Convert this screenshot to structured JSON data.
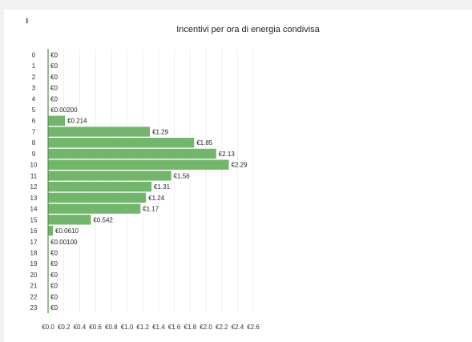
{
  "info_icon": "i",
  "chart_data": {
    "type": "bar",
    "orientation": "horizontal",
    "title": "Incentivi per ora di energia condivisa",
    "xlabel": "",
    "ylabel": "",
    "categories": [
      "0",
      "1",
      "2",
      "3",
      "4",
      "5",
      "6",
      "7",
      "8",
      "9",
      "10",
      "11",
      "12",
      "13",
      "14",
      "15",
      "16",
      "17",
      "18",
      "19",
      "20",
      "21",
      "22",
      "23"
    ],
    "values": [
      0,
      0,
      0,
      0,
      0,
      0.002,
      0.214,
      1.29,
      1.85,
      2.13,
      2.29,
      1.56,
      1.31,
      1.24,
      1.17,
      0.542,
      0.061,
      0.001,
      0,
      0,
      0,
      0,
      0,
      0
    ],
    "data_labels": [
      "€0",
      "€0",
      "€0",
      "€0",
      "€0",
      "€0.00200",
      "€0.214",
      "€1.29",
      "€1.85",
      "€2.13",
      "€2.29",
      "€1.56",
      "€1.31",
      "€1.24",
      "€1.17",
      "€0.542",
      "€0.0610",
      "€0.00100",
      "€0",
      "€0",
      "€0",
      "€0",
      "€0",
      "€0"
    ],
    "x_ticks": [
      0,
      0.2,
      0.4,
      0.6,
      0.8,
      1.0,
      1.2,
      1.4,
      1.6,
      1.8,
      2.0,
      2.2,
      2.4,
      2.6
    ],
    "x_tick_labels": [
      "€0.0",
      "€0.2",
      "€0.4",
      "€0.6",
      "€0.8",
      "€1.0",
      "€1.2",
      "€1.4",
      "€1.6",
      "€1.8",
      "€2.0",
      "€2.2",
      "€2.4",
      "€2.6"
    ],
    "xlim": [
      0,
      2.6
    ],
    "grid": true,
    "legend": "none",
    "colors": {
      "bar": "#72b66b",
      "bar_edge": "#5e9d58",
      "grid": "#eeeeee",
      "axis": "#4c8f46"
    }
  }
}
